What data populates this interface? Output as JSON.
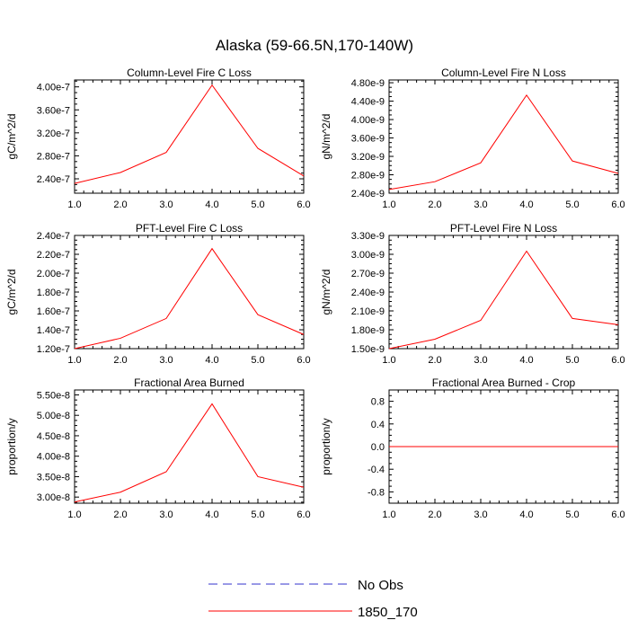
{
  "title": "Alaska (59-66.5N,170-140W)",
  "line_color": "#ff0000",
  "obs_color": "#3333cc",
  "legend": {
    "entries": [
      {
        "label": "No Obs",
        "style": "dashed",
        "color": "#3333cc"
      },
      {
        "label": "1850_170",
        "style": "solid",
        "color": "#ff0000"
      }
    ]
  },
  "chart_data": [
    {
      "type": "line",
      "title": "Column-Level Fire C Loss",
      "ylabel": "gC/m^2/d",
      "xlim": [
        1.0,
        6.0
      ],
      "xticks": [
        "1.0",
        "2.0",
        "3.0",
        "4.0",
        "5.0",
        "6.0"
      ],
      "ylim": [
        2.15e-07,
        4.12e-07
      ],
      "yticks": [
        {
          "v": 2.4e-07,
          "label": "2.40e-7"
        },
        {
          "v": 2.8e-07,
          "label": "2.80e-7"
        },
        {
          "v": 3.2e-07,
          "label": "3.20e-7"
        },
        {
          "v": 3.6e-07,
          "label": "3.60e-7"
        },
        {
          "v": 4e-07,
          "label": "4.00e-7"
        }
      ],
      "series": [
        {
          "name": "1850_170",
          "x": [
            1,
            2,
            3,
            4,
            5,
            6
          ],
          "y": [
            2.32e-07,
            2.51e-07,
            2.86e-07,
            4.03e-07,
            2.93e-07,
            2.45e-07
          ]
        }
      ]
    },
    {
      "type": "line",
      "title": "Column-Level Fire N Loss",
      "ylabel": "gN/m^2/d",
      "xlim": [
        1.0,
        6.0
      ],
      "xticks": [
        "1.0",
        "2.0",
        "3.0",
        "4.0",
        "5.0",
        "6.0"
      ],
      "ylim": [
        2.4e-09,
        4.86e-09
      ],
      "yticks": [
        {
          "v": 2.4e-09,
          "label": "2.40e-9"
        },
        {
          "v": 2.8e-09,
          "label": "2.80e-9"
        },
        {
          "v": 3.2e-09,
          "label": "3.20e-9"
        },
        {
          "v": 3.6e-09,
          "label": "3.60e-9"
        },
        {
          "v": 4e-09,
          "label": "4.00e-9"
        },
        {
          "v": 4.4e-09,
          "label": "4.40e-9"
        },
        {
          "v": 4.8e-09,
          "label": "4.80e-9"
        }
      ],
      "series": [
        {
          "name": "1850_170",
          "x": [
            1,
            2,
            3,
            4,
            5,
            6
          ],
          "y": [
            2.48e-09,
            2.65e-09,
            3.06e-09,
            4.53e-09,
            3.1e-09,
            2.83e-09
          ]
        }
      ]
    },
    {
      "type": "line",
      "title": "PFT-Level Fire C Loss",
      "ylabel": "gC/m^2/d",
      "xlim": [
        1.0,
        6.0
      ],
      "xticks": [
        "1.0",
        "2.0",
        "3.0",
        "4.0",
        "5.0",
        "6.0"
      ],
      "ylim": [
        1.2e-07,
        2.4e-07
      ],
      "yticks": [
        {
          "v": 1.2e-07,
          "label": "1.20e-7"
        },
        {
          "v": 1.4e-07,
          "label": "1.40e-7"
        },
        {
          "v": 1.6e-07,
          "label": "1.60e-7"
        },
        {
          "v": 1.8e-07,
          "label": "1.80e-7"
        },
        {
          "v": 2e-07,
          "label": "2.00e-7"
        },
        {
          "v": 2.2e-07,
          "label": "2.20e-7"
        },
        {
          "v": 2.4e-07,
          "label": "2.40e-7"
        }
      ],
      "series": [
        {
          "name": "1850_170",
          "x": [
            1,
            2,
            3,
            4,
            5,
            6
          ],
          "y": [
            1.2e-07,
            1.31e-07,
            1.52e-07,
            2.26e-07,
            1.56e-07,
            1.35e-07
          ]
        }
      ]
    },
    {
      "type": "line",
      "title": "PFT-Level Fire N Loss",
      "ylabel": "gN/m^2/d",
      "xlim": [
        1.0,
        6.0
      ],
      "xticks": [
        "1.0",
        "2.0",
        "3.0",
        "4.0",
        "5.0",
        "6.0"
      ],
      "ylim": [
        1.5e-09,
        3.3e-09
      ],
      "yticks": [
        {
          "v": 1.5e-09,
          "label": "1.50e-9"
        },
        {
          "v": 1.8e-09,
          "label": "1.80e-9"
        },
        {
          "v": 2.1e-09,
          "label": "2.10e-9"
        },
        {
          "v": 2.4e-09,
          "label": "2.40e-9"
        },
        {
          "v": 2.7e-09,
          "label": "2.70e-9"
        },
        {
          "v": 3e-09,
          "label": "3.00e-9"
        },
        {
          "v": 3.3e-09,
          "label": "3.30e-9"
        }
      ],
      "series": [
        {
          "name": "1850_170",
          "x": [
            1,
            2,
            3,
            4,
            5,
            6
          ],
          "y": [
            1.5e-09,
            1.65e-09,
            1.95e-09,
            3.05e-09,
            1.98e-09,
            1.88e-09
          ]
        }
      ]
    },
    {
      "type": "line",
      "title": "Fractional Area Burned",
      "ylabel": "proportion/y",
      "xlim": [
        1.0,
        6.0
      ],
      "xticks": [
        "1.0",
        "2.0",
        "3.0",
        "4.0",
        "5.0",
        "6.0"
      ],
      "ylim": [
        2.85e-08,
        5.62e-08
      ],
      "yticks": [
        {
          "v": 3e-08,
          "label": "3.00e-8"
        },
        {
          "v": 3.5e-08,
          "label": "3.50e-8"
        },
        {
          "v": 4e-08,
          "label": "4.00e-8"
        },
        {
          "v": 4.5e-08,
          "label": "4.50e-8"
        },
        {
          "v": 5e-08,
          "label": "5.00e-8"
        },
        {
          "v": 5.5e-08,
          "label": "5.50e-8"
        }
      ],
      "series": [
        {
          "name": "1850_170",
          "x": [
            1,
            2,
            3,
            4,
            5,
            6
          ],
          "y": [
            2.88e-08,
            3.12e-08,
            3.62e-08,
            5.28e-08,
            3.5e-08,
            3.24e-08
          ]
        }
      ]
    },
    {
      "type": "line",
      "title": "Fractional Area Burned - Crop",
      "ylabel": "proportion/y",
      "xlim": [
        1.0,
        6.0
      ],
      "xticks": [
        "1.0",
        "2.0",
        "3.0",
        "4.0",
        "5.0",
        "6.0"
      ],
      "ylim": [
        -1.0,
        1.0
      ],
      "yticks": [
        {
          "v": -0.8,
          "label": "-0.8"
        },
        {
          "v": -0.4,
          "label": "-0.4"
        },
        {
          "v": 0.0,
          "label": "0.0"
        },
        {
          "v": 0.4,
          "label": "0.4"
        },
        {
          "v": 0.8,
          "label": "0.8"
        }
      ],
      "series": [
        {
          "name": "1850_170",
          "x": [
            1,
            2,
            3,
            4,
            5,
            6
          ],
          "y": [
            0,
            0,
            0,
            0,
            0,
            0
          ]
        }
      ]
    }
  ]
}
